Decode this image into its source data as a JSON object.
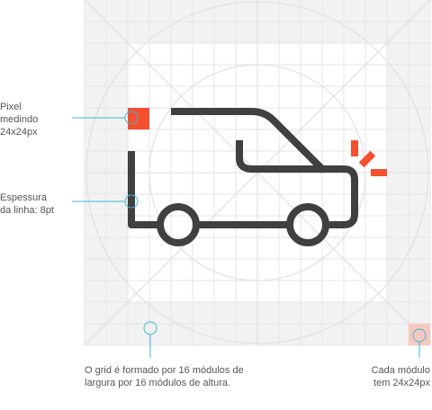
{
  "annotations": [
    {
      "lines": [
        "Pixel",
        "medindo",
        "24x24px"
      ]
    },
    {
      "lines": [
        "Espessura",
        "da linha: 8pt"
      ]
    },
    {
      "lines": [
        "O grid é formado por 16 módulos de",
        "largura por 16 módulos de altura."
      ]
    },
    {
      "lines": [
        "Cada módulo",
        "tem 24x24px"
      ]
    }
  ]
}
